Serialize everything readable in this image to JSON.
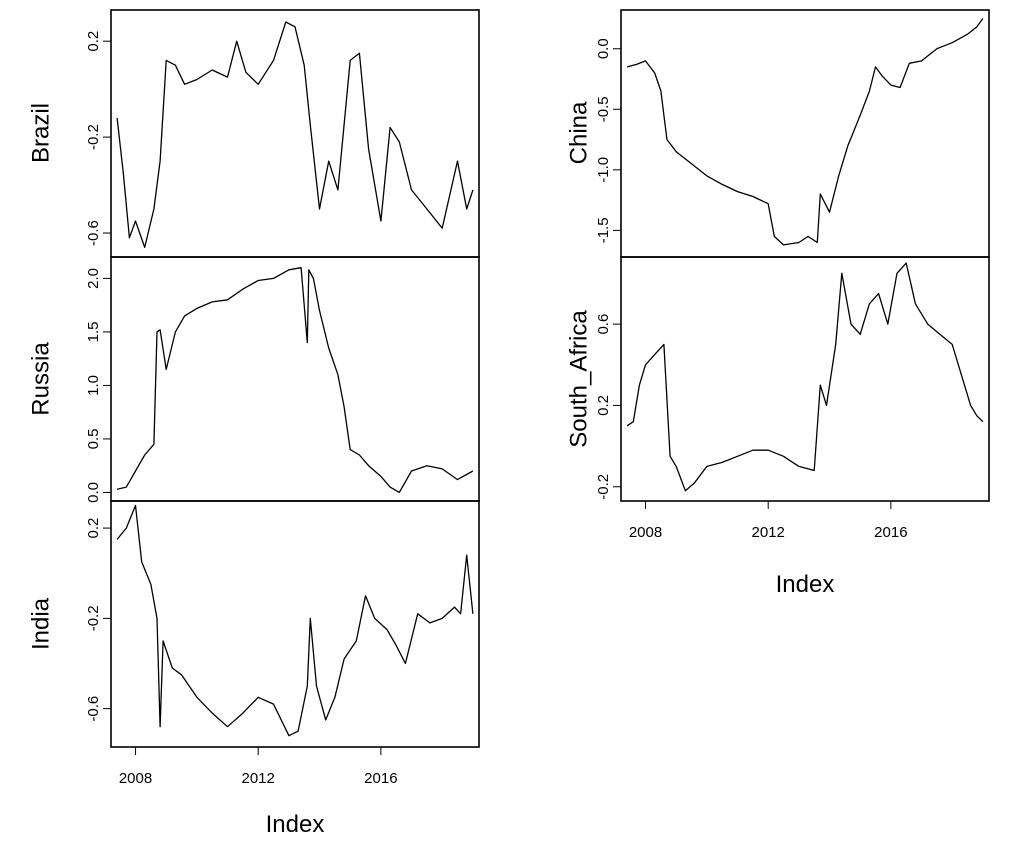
{
  "chart_data": [
    {
      "type": "line",
      "ylabel": "Brazil",
      "xlim": [
        2007.2,
        2019.2
      ],
      "ylim": [
        -0.7,
        0.33
      ],
      "yticks": [
        0.2,
        -0.2,
        -0.6
      ],
      "yticklabels": [
        "0.2",
        "-0.2",
        "-0.6"
      ],
      "x": [
        2007.4,
        2007.6,
        2007.8,
        2008.0,
        2008.3,
        2008.6,
        2008.8,
        2009.0,
        2009.3,
        2009.6,
        2010.0,
        2010.5,
        2011.0,
        2011.3,
        2011.6,
        2012.0,
        2012.5,
        2012.9,
        2013.2,
        2013.5,
        2013.7,
        2014.0,
        2014.3,
        2014.6,
        2015.0,
        2015.3,
        2015.6,
        2016.0,
        2016.3,
        2016.6,
        2017.0,
        2017.5,
        2018.0,
        2018.5,
        2018.8,
        2019.0
      ],
      "y": [
        -0.12,
        -0.35,
        -0.62,
        -0.55,
        -0.66,
        -0.5,
        -0.3,
        0.12,
        0.1,
        0.02,
        0.04,
        0.08,
        0.05,
        0.2,
        0.07,
        0.02,
        0.12,
        0.28,
        0.26,
        0.1,
        -0.15,
        -0.5,
        -0.3,
        -0.42,
        0.12,
        0.15,
        -0.25,
        -0.55,
        -0.16,
        -0.22,
        -0.42,
        -0.5,
        -0.58,
        -0.3,
        -0.5,
        -0.42
      ],
      "xticks": [],
      "xticklabels": [],
      "xlabel": ""
    },
    {
      "type": "line",
      "ylabel": "Russia",
      "xlim": [
        2007.2,
        2019.2
      ],
      "ylim": [
        -0.08,
        2.2
      ],
      "yticks": [
        0.0,
        0.5,
        1.0,
        1.5,
        2.0
      ],
      "yticklabels": [
        "0.0",
        "0.5",
        "1.0",
        "1.5",
        "2.0"
      ],
      "x": [
        2007.4,
        2007.7,
        2008.0,
        2008.3,
        2008.6,
        2008.7,
        2008.8,
        2009.0,
        2009.3,
        2009.6,
        2010.0,
        2010.5,
        2011.0,
        2011.5,
        2012.0,
        2012.5,
        2013.0,
        2013.4,
        2013.6,
        2013.65,
        2013.8,
        2014.0,
        2014.3,
        2014.6,
        2014.8,
        2015.0,
        2015.3,
        2015.6,
        2016.0,
        2016.3,
        2016.6,
        2017.0,
        2017.5,
        2018.0,
        2018.5,
        2019.0
      ],
      "y": [
        0.03,
        0.05,
        0.2,
        0.35,
        0.45,
        1.5,
        1.52,
        1.15,
        1.5,
        1.65,
        1.72,
        1.78,
        1.8,
        1.9,
        1.98,
        2.0,
        2.08,
        2.1,
        1.4,
        2.08,
        2.0,
        1.7,
        1.35,
        1.1,
        0.8,
        0.4,
        0.35,
        0.25,
        0.15,
        0.05,
        0.0,
        0.2,
        0.25,
        0.22,
        0.12,
        0.2
      ]
    },
    {
      "type": "line",
      "ylabel": "India",
      "xlim": [
        2007.2,
        2019.2
      ],
      "ylim": [
        -0.77,
        0.32
      ],
      "yticks": [
        0.2,
        -0.2,
        -0.6
      ],
      "yticklabels": [
        "0.2",
        "-0.2",
        "-0.6"
      ],
      "xticks": [
        2008,
        2012,
        2016
      ],
      "xticklabels": [
        "2008",
        "2012",
        "2016"
      ],
      "xlabel": "Index",
      "x": [
        2007.4,
        2007.7,
        2008.0,
        2008.2,
        2008.5,
        2008.7,
        2008.8,
        2008.9,
        2009.2,
        2009.5,
        2010.0,
        2010.5,
        2011.0,
        2011.5,
        2012.0,
        2012.5,
        2013.0,
        2013.3,
        2013.6,
        2013.7,
        2013.9,
        2014.2,
        2014.5,
        2014.8,
        2015.2,
        2015.5,
        2015.8,
        2016.2,
        2016.5,
        2016.8,
        2017.2,
        2017.6,
        2018.0,
        2018.4,
        2018.6,
        2018.8,
        2019.0
      ],
      "y": [
        0.15,
        0.2,
        0.3,
        0.05,
        -0.05,
        -0.2,
        -0.68,
        -0.3,
        -0.42,
        -0.45,
        -0.55,
        -0.62,
        -0.68,
        -0.62,
        -0.55,
        -0.58,
        -0.72,
        -0.7,
        -0.5,
        -0.2,
        -0.5,
        -0.65,
        -0.55,
        -0.38,
        -0.3,
        -0.1,
        -0.2,
        -0.25,
        -0.32,
        -0.4,
        -0.18,
        -0.22,
        -0.2,
        -0.15,
        -0.18,
        0.08,
        -0.18
      ]
    },
    {
      "type": "line",
      "ylabel": "China",
      "xlim": [
        2007.2,
        2019.2
      ],
      "ylim": [
        -1.72,
        0.32
      ],
      "yticks": [
        0.0,
        -0.5,
        -1.0,
        -1.5
      ],
      "yticklabels": [
        "0.0",
        "-0.5",
        "-1.0",
        "-1.5"
      ],
      "x": [
        2007.4,
        2007.7,
        2008.0,
        2008.3,
        2008.5,
        2008.6,
        2008.7,
        2009.0,
        2009.5,
        2010.0,
        2010.5,
        2011.0,
        2011.5,
        2012.0,
        2012.2,
        2012.5,
        2013.0,
        2013.3,
        2013.6,
        2013.7,
        2014.0,
        2014.3,
        2014.6,
        2015.0,
        2015.3,
        2015.5,
        2015.7,
        2016.0,
        2016.3,
        2016.6,
        2017.0,
        2017.5,
        2018.0,
        2018.5,
        2018.8,
        2019.0
      ],
      "y": [
        -0.15,
        -0.13,
        -0.1,
        -0.2,
        -0.35,
        -0.55,
        -0.75,
        -0.85,
        -0.95,
        -1.05,
        -1.12,
        -1.18,
        -1.22,
        -1.28,
        -1.55,
        -1.62,
        -1.6,
        -1.55,
        -1.6,
        -1.2,
        -1.35,
        -1.05,
        -0.8,
        -0.55,
        -0.35,
        -0.15,
        -0.22,
        -0.3,
        -0.32,
        -0.12,
        -0.1,
        0.0,
        0.05,
        0.12,
        0.18,
        0.25
      ]
    },
    {
      "type": "line",
      "ylabel": "South_Africa",
      "xlim": [
        2007.2,
        2019.2
      ],
      "ylim": [
        -0.27,
        0.93
      ],
      "yticks": [
        -0.2,
        0.2,
        0.6
      ],
      "yticklabels": [
        "-0.2",
        "0.2",
        "0.6"
      ],
      "xticks": [
        2008,
        2012,
        2016
      ],
      "xticklabels": [
        "2008",
        "2012",
        "2016"
      ],
      "xlabel": "Index",
      "x": [
        2007.4,
        2007.6,
        2007.8,
        2008.0,
        2008.3,
        2008.6,
        2008.8,
        2009.0,
        2009.3,
        2009.6,
        2010.0,
        2010.5,
        2011.0,
        2011.5,
        2012.0,
        2012.5,
        2013.0,
        2013.5,
        2013.7,
        2013.9,
        2014.2,
        2014.4,
        2014.7,
        2015.0,
        2015.3,
        2015.6,
        2015.9,
        2016.2,
        2016.5,
        2016.8,
        2017.2,
        2017.6,
        2018.0,
        2018.3,
        2018.6,
        2018.8,
        2019.0
      ],
      "y": [
        0.1,
        0.12,
        0.3,
        0.4,
        0.45,
        0.5,
        -0.05,
        -0.1,
        -0.22,
        -0.18,
        -0.1,
        -0.08,
        -0.05,
        -0.02,
        -0.02,
        -0.05,
        -0.1,
        -0.12,
        0.3,
        0.2,
        0.5,
        0.85,
        0.6,
        0.55,
        0.7,
        0.75,
        0.6,
        0.85,
        0.9,
        0.7,
        0.6,
        0.55,
        0.5,
        0.35,
        0.2,
        0.15,
        0.12
      ]
    }
  ]
}
